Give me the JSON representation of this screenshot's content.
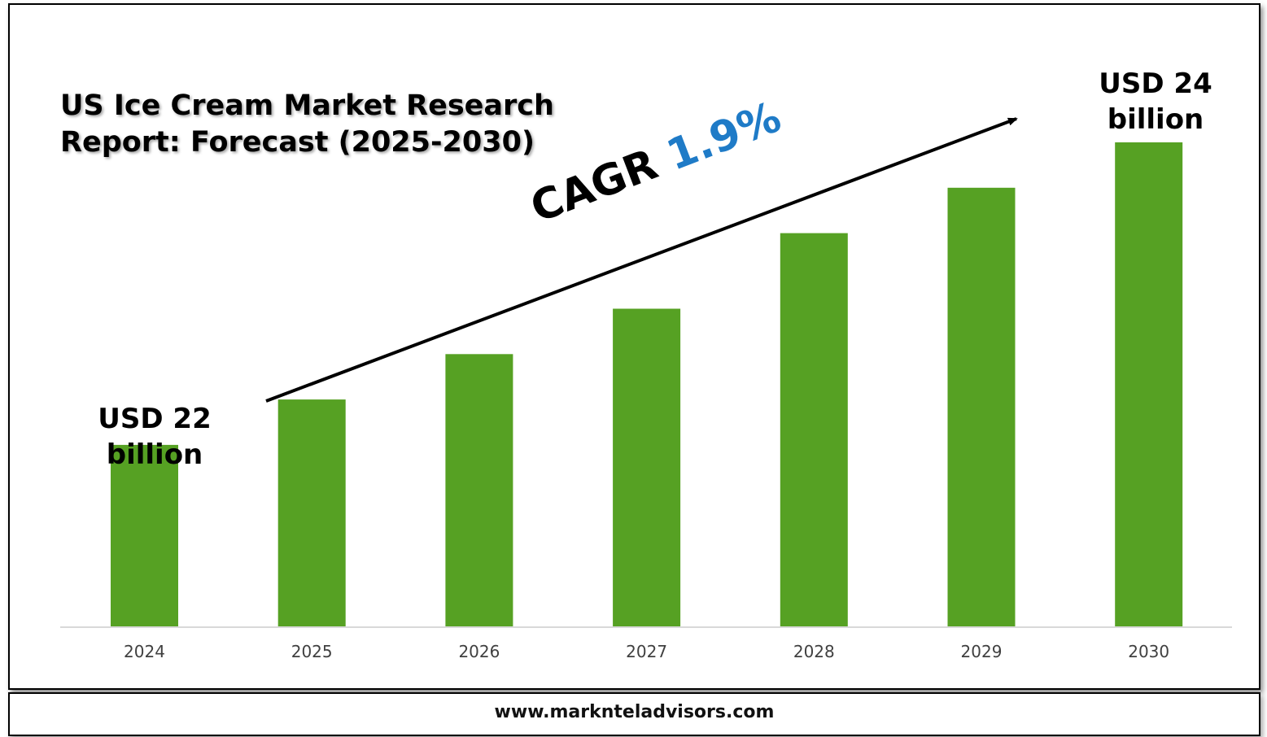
{
  "title": "US Ice Cream Market Research Report: Forecast (2025-2030)",
  "cagr_label": "CAGR",
  "cagr_value": "1.9%",
  "annotations": {
    "start_line1": "USD 22",
    "start_line2": "billion",
    "end_line1": "USD 24",
    "end_line2": "billion"
  },
  "footer": "www.marknteladvisors.com",
  "colors": {
    "bar": "#56a123",
    "cagr_value": "#1f7bc7",
    "axis": "#d9d9d9"
  },
  "chart_data": {
    "type": "bar",
    "title": "US Ice Cream Market Research Report: Forecast (2025-2030)",
    "categories": [
      "2024",
      "2025",
      "2026",
      "2027",
      "2028",
      "2029",
      "2030"
    ],
    "values": [
      22,
      22.3,
      22.6,
      22.9,
      23.4,
      23.7,
      24
    ],
    "ylim": [
      20.8,
      24
    ],
    "xlabel": "",
    "ylabel": "",
    "grid": false
  }
}
